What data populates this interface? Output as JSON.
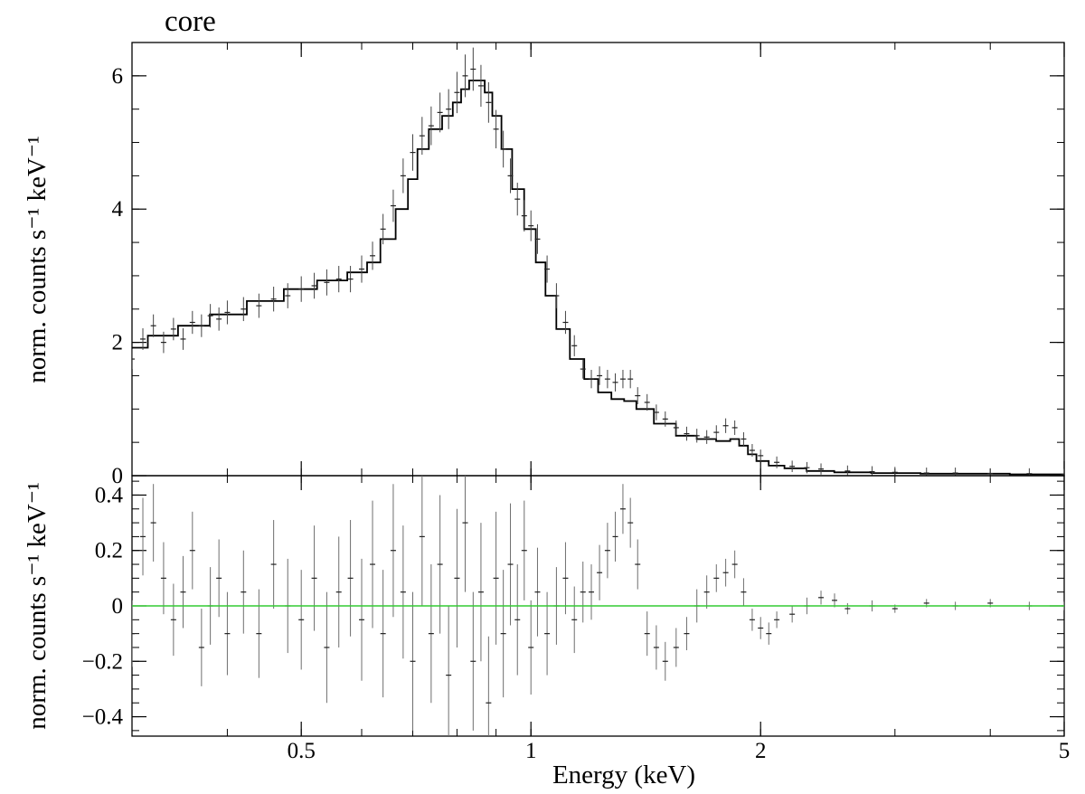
{
  "chart_data": {
    "type": "line",
    "title": "core",
    "xlabel": "Energy (keV)",
    "xscale": "log",
    "xlim": [
      0.3,
      5
    ],
    "x_ticks": [
      0.5,
      1,
      2,
      5
    ],
    "x_tick_labels": [
      "0.5",
      "1",
      "2",
      "5"
    ],
    "grid": false,
    "legend": "none",
    "colors": {
      "data": "#000000",
      "residual": "#6e6e6e",
      "zero_line": "#33cc33"
    },
    "panels": [
      {
        "name": "spectrum",
        "ylabel": "norm. counts s⁻¹ keV⁻¹",
        "ylim": [
          0,
          6.5
        ],
        "y_ticks": [
          0,
          2,
          4,
          6
        ],
        "y_tick_labels": [
          "0",
          "2",
          "4",
          "6"
        ],
        "series": [
          {
            "kind": "model",
            "x": [
              0.3,
              0.33,
              0.36,
              0.4,
              0.45,
              0.5,
              0.55,
              0.6,
              0.62,
              0.65,
              0.68,
              0.7,
              0.72,
              0.75,
              0.78,
              0.8,
              0.82,
              0.84,
              0.86,
              0.88,
              0.9,
              0.93,
              0.96,
              1.0,
              1.03,
              1.06,
              1.1,
              1.15,
              1.2,
              1.25,
              1.3,
              1.35,
              1.4,
              1.5,
              1.6,
              1.7,
              1.8,
              1.85,
              1.9,
              1.95,
              2.0,
              2.1,
              2.2,
              2.4,
              2.6,
              3.0,
              3.5,
              4.0,
              4.5,
              5.0
            ],
            "y": [
              1.92,
              2.1,
              2.25,
              2.42,
              2.62,
              2.8,
              2.93,
              3.05,
              3.2,
              3.55,
              4.0,
              4.45,
              4.9,
              5.2,
              5.4,
              5.6,
              5.8,
              5.93,
              5.93,
              5.75,
              5.4,
              4.9,
              4.3,
              3.7,
              3.2,
              2.7,
              2.2,
              1.75,
              1.45,
              1.25,
              1.15,
              1.12,
              1.0,
              0.78,
              0.6,
              0.55,
              0.52,
              0.55,
              0.45,
              0.32,
              0.22,
              0.15,
              0.11,
              0.07,
              0.05,
              0.04,
              0.03,
              0.03,
              0.02,
              0.02
            ]
          },
          {
            "kind": "data",
            "x": [
              0.3,
              0.31,
              0.32,
              0.33,
              0.34,
              0.35,
              0.36,
              0.37,
              0.38,
              0.39,
              0.4,
              0.42,
              0.44,
              0.46,
              0.48,
              0.5,
              0.52,
              0.54,
              0.56,
              0.58,
              0.6,
              0.62,
              0.64,
              0.66,
              0.68,
              0.7,
              0.72,
              0.74,
              0.76,
              0.78,
              0.8,
              0.82,
              0.84,
              0.86,
              0.88,
              0.9,
              0.92,
              0.94,
              0.96,
              0.98,
              1.0,
              1.02,
              1.05,
              1.08,
              1.11,
              1.14,
              1.17,
              1.2,
              1.23,
              1.26,
              1.29,
              1.32,
              1.35,
              1.38,
              1.42,
              1.46,
              1.5,
              1.55,
              1.6,
              1.65,
              1.7,
              1.75,
              1.8,
              1.85,
              1.9,
              1.95,
              2.0,
              2.1,
              2.2,
              2.3,
              2.4,
              2.6,
              2.8,
              3.0,
              3.3,
              3.6,
              4.0,
              4.5,
              5.0
            ],
            "y": [
              1.75,
              2.05,
              2.25,
              2.0,
              2.2,
              2.05,
              2.3,
              2.25,
              2.4,
              2.35,
              2.45,
              2.5,
              2.55,
              2.65,
              2.7,
              2.8,
              2.85,
              2.9,
              2.95,
              2.95,
              3.1,
              3.3,
              3.7,
              4.05,
              4.5,
              4.85,
              5.1,
              5.25,
              5.45,
              5.5,
              5.75,
              6.0,
              6.1,
              5.85,
              5.6,
              5.2,
              4.9,
              4.5,
              4.15,
              3.9,
              3.75,
              3.55,
              3.1,
              2.7,
              2.3,
              1.95,
              1.6,
              1.45,
              1.5,
              1.45,
              1.4,
              1.45,
              1.45,
              1.2,
              1.1,
              0.95,
              0.85,
              0.72,
              0.63,
              0.6,
              0.58,
              0.65,
              0.75,
              0.72,
              0.55,
              0.38,
              0.3,
              0.2,
              0.14,
              0.12,
              0.1,
              0.07,
              0.06,
              0.05,
              0.04,
              0.04,
              0.03,
              0.03,
              0.02
            ]
          }
        ]
      },
      {
        "name": "residuals",
        "ylabel": "norm. counts s⁻¹ keV⁻¹",
        "ylim": [
          -0.47,
          0.47
        ],
        "y_ticks": [
          -0.4,
          -0.2,
          0,
          0.2,
          0.4
        ],
        "y_tick_labels": [
          "−0.4",
          "−0.2",
          "0",
          "0.2",
          "0.4"
        ],
        "zero_line": 0,
        "series": [
          {
            "kind": "residual",
            "x": [
              0.3,
              0.31,
              0.32,
              0.33,
              0.34,
              0.35,
              0.36,
              0.37,
              0.38,
              0.39,
              0.4,
              0.42,
              0.44,
              0.46,
              0.48,
              0.5,
              0.52,
              0.54,
              0.56,
              0.58,
              0.6,
              0.62,
              0.64,
              0.66,
              0.68,
              0.7,
              0.72,
              0.74,
              0.76,
              0.78,
              0.8,
              0.82,
              0.84,
              0.86,
              0.88,
              0.9,
              0.92,
              0.94,
              0.96,
              0.98,
              1.0,
              1.02,
              1.05,
              1.08,
              1.11,
              1.14,
              1.17,
              1.2,
              1.23,
              1.26,
              1.29,
              1.32,
              1.35,
              1.38,
              1.42,
              1.46,
              1.5,
              1.55,
              1.6,
              1.65,
              1.7,
              1.75,
              1.8,
              1.85,
              1.9,
              1.95,
              2.0,
              2.05,
              2.1,
              2.2,
              2.3,
              2.4,
              2.5,
              2.6,
              2.8,
              3.0,
              3.3,
              3.6,
              4.0,
              4.5,
              5.0
            ],
            "y": [
              -0.1,
              0.25,
              0.3,
              0.1,
              -0.05,
              0.05,
              0.2,
              -0.15,
              0.0,
              0.1,
              -0.1,
              0.05,
              -0.1,
              0.15,
              0.0,
              -0.05,
              0.1,
              -0.15,
              0.05,
              0.1,
              -0.05,
              0.15,
              -0.1,
              0.2,
              0.05,
              -0.2,
              0.25,
              -0.1,
              0.15,
              -0.25,
              0.1,
              0.3,
              -0.2,
              0.05,
              -0.35,
              0.1,
              -0.1,
              0.15,
              -0.05,
              0.2,
              -0.15,
              0.05,
              -0.1,
              0.0,
              0.1,
              -0.05,
              0.05,
              0.05,
              0.12,
              0.2,
              0.25,
              0.35,
              0.3,
              0.15,
              -0.1,
              -0.15,
              -0.2,
              -0.15,
              -0.1,
              0.0,
              0.05,
              0.1,
              0.12,
              0.15,
              0.05,
              -0.05,
              -0.08,
              -0.1,
              -0.05,
              -0.03,
              0.0,
              0.03,
              0.02,
              -0.01,
              0.0,
              -0.01,
              0.01,
              0.0,
              0.01,
              0.0,
              0.0
            ],
            "error": [
              0.12,
              0.14,
              0.14,
              0.13,
              0.13,
              0.13,
              0.14,
              0.14,
              0.14,
              0.14,
              0.15,
              0.15,
              0.16,
              0.16,
              0.17,
              0.18,
              0.19,
              0.2,
              0.2,
              0.21,
              0.22,
              0.23,
              0.23,
              0.24,
              0.24,
              0.25,
              0.25,
              0.25,
              0.25,
              0.25,
              0.25,
              0.25,
              0.25,
              0.25,
              0.24,
              0.24,
              0.23,
              0.22,
              0.2,
              0.18,
              0.17,
              0.16,
              0.15,
              0.14,
              0.13,
              0.12,
              0.11,
              0.1,
              0.1,
              0.1,
              0.09,
              0.09,
              0.09,
              0.09,
              0.08,
              0.08,
              0.07,
              0.07,
              0.06,
              0.06,
              0.06,
              0.05,
              0.05,
              0.05,
              0.05,
              0.04,
              0.04,
              0.04,
              0.03,
              0.03,
              0.03,
              0.025,
              0.025,
              0.02,
              0.02,
              0.015,
              0.015,
              0.015,
              0.015,
              0.015,
              0.015
            ]
          }
        ]
      }
    ]
  }
}
